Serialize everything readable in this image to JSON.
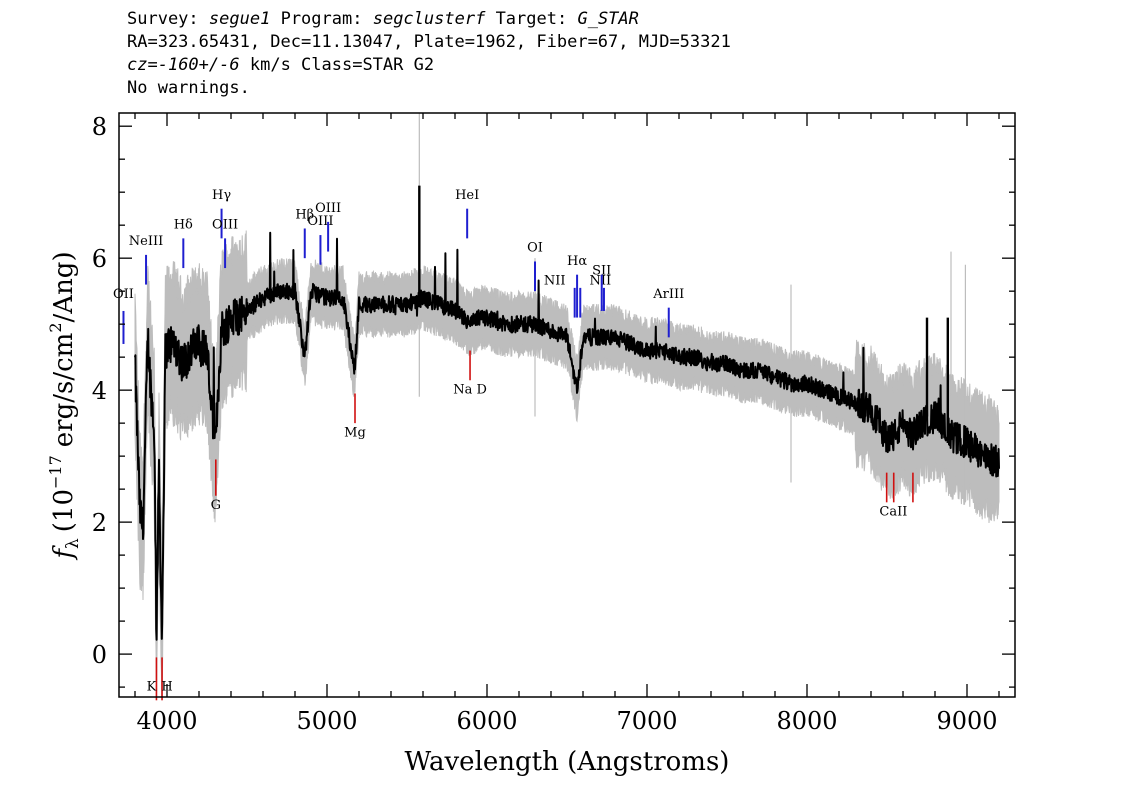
{
  "header": {
    "survey_label": "Survey:",
    "survey_value": "segue1",
    "program_label": "Program:",
    "program_value": "segclusterf",
    "target_label": "Target:",
    "target_value": "G_STAR",
    "line2": "RA=323.65431, Dec=11.13047, Plate=1962, Fiber=67, MJD=53321",
    "cz_label": "cz=",
    "cz_value": "-160+/-6",
    "cz_units": "km/s Class=STAR G2",
    "line4": "No warnings."
  },
  "chart_data": {
    "type": "line",
    "xlabel": "Wavelength (Angstroms)",
    "ylabel_parts": {
      "f": "f",
      "sub": "λ",
      "open": "(10",
      "exp": "−17",
      "units": "erg/s/cm",
      "sq": "2",
      "close": "/Ang)"
    },
    "xlim": [
      3700,
      9300
    ],
    "ylim": [
      -0.65,
      8.2
    ],
    "xticks": [
      4000,
      5000,
      6000,
      7000,
      8000,
      9000
    ],
    "yticks": [
      0,
      2,
      4,
      6,
      8
    ],
    "colors": {
      "flux": "#000000",
      "error": "#bdbdbd",
      "emission": "#1f1fd0",
      "absorption": "#d01010"
    },
    "series": [
      {
        "role": "flux",
        "x": [
          3800,
          3830,
          3850,
          3880,
          3900,
          3920,
          3934,
          3950,
          3968,
          3990,
          4010,
          4050,
          4100,
          4150,
          4200,
          4250,
          4300,
          4340,
          4400,
          4500,
          4600,
          4700,
          4800,
          4861,
          4900,
          5000,
          5100,
          5172,
          5200,
          5300,
          5400,
          5500,
          5600,
          5700,
          5800,
          5893,
          5950,
          6000,
          6100,
          6200,
          6300,
          6400,
          6500,
          6563,
          6600,
          6700,
          6800,
          6900,
          7000,
          7100,
          7200,
          7300,
          7400,
          7500,
          7600,
          7700,
          7800,
          7900,
          8000,
          8100,
          8200,
          8300,
          8400,
          8450,
          8498,
          8542,
          8600,
          8662,
          8700,
          8800,
          8850,
          8900,
          9000,
          9100,
          9200
        ],
        "y": [
          4.4,
          2.2,
          1.9,
          4.8,
          4.0,
          3.4,
          0.3,
          2.8,
          0.2,
          4.6,
          4.7,
          4.7,
          4.4,
          4.6,
          4.7,
          4.6,
          3.1,
          4.9,
          5.1,
          5.2,
          5.4,
          5.5,
          5.5,
          4.5,
          5.5,
          5.4,
          5.4,
          4.3,
          5.3,
          5.3,
          5.3,
          5.3,
          5.4,
          5.3,
          5.2,
          5.0,
          5.1,
          5.1,
          5.0,
          5.0,
          5.0,
          4.9,
          4.8,
          4.0,
          4.8,
          4.8,
          4.8,
          4.7,
          4.6,
          4.6,
          4.5,
          4.5,
          4.4,
          4.4,
          4.3,
          4.3,
          4.2,
          4.1,
          4.1,
          4.0,
          3.9,
          3.8,
          3.7,
          3.5,
          3.3,
          3.3,
          3.5,
          3.3,
          3.5,
          3.6,
          3.5,
          3.3,
          3.2,
          3.0,
          2.9
        ]
      }
    ],
    "emission_lines": [
      {
        "name": "OII",
        "wave": 3728
      },
      {
        "name": "NeIII",
        "wave": 3869
      },
      {
        "name": "Hδ",
        "wave": 4102
      },
      {
        "name": "Hγ",
        "wave": 4341
      },
      {
        "name": "OIII",
        "wave": 4363
      },
      {
        "name": "Hβ",
        "wave": 4861
      },
      {
        "name": "OIII",
        "wave": 4959
      },
      {
        "name": "OIII",
        "wave": 5007
      },
      {
        "name": "HeI",
        "wave": 5876
      },
      {
        "name": "OI",
        "wave": 6300
      },
      {
        "name": "NII",
        "wave": 6548
      },
      {
        "name": "Hα",
        "wave": 6563
      },
      {
        "name": "NII",
        "wave": 6583
      },
      {
        "name": "SII",
        "wave": 6717
      },
      {
        "name": "SII",
        "wave": 6731
      },
      {
        "name": "ArIII",
        "wave": 7136
      }
    ],
    "absorption_lines": [
      {
        "name": "K",
        "wave": 3934
      },
      {
        "name": "H",
        "wave": 3969
      },
      {
        "name": "G",
        "wave": 4305
      },
      {
        "name": "Mg",
        "wave": 5175
      },
      {
        "name": "Na D",
        "wave": 5894
      },
      {
        "name": "CaII",
        "wave": 8498
      },
      {
        "name": "CaII",
        "wave": 8542
      },
      {
        "name": "CaII",
        "wave": 8662
      }
    ]
  }
}
